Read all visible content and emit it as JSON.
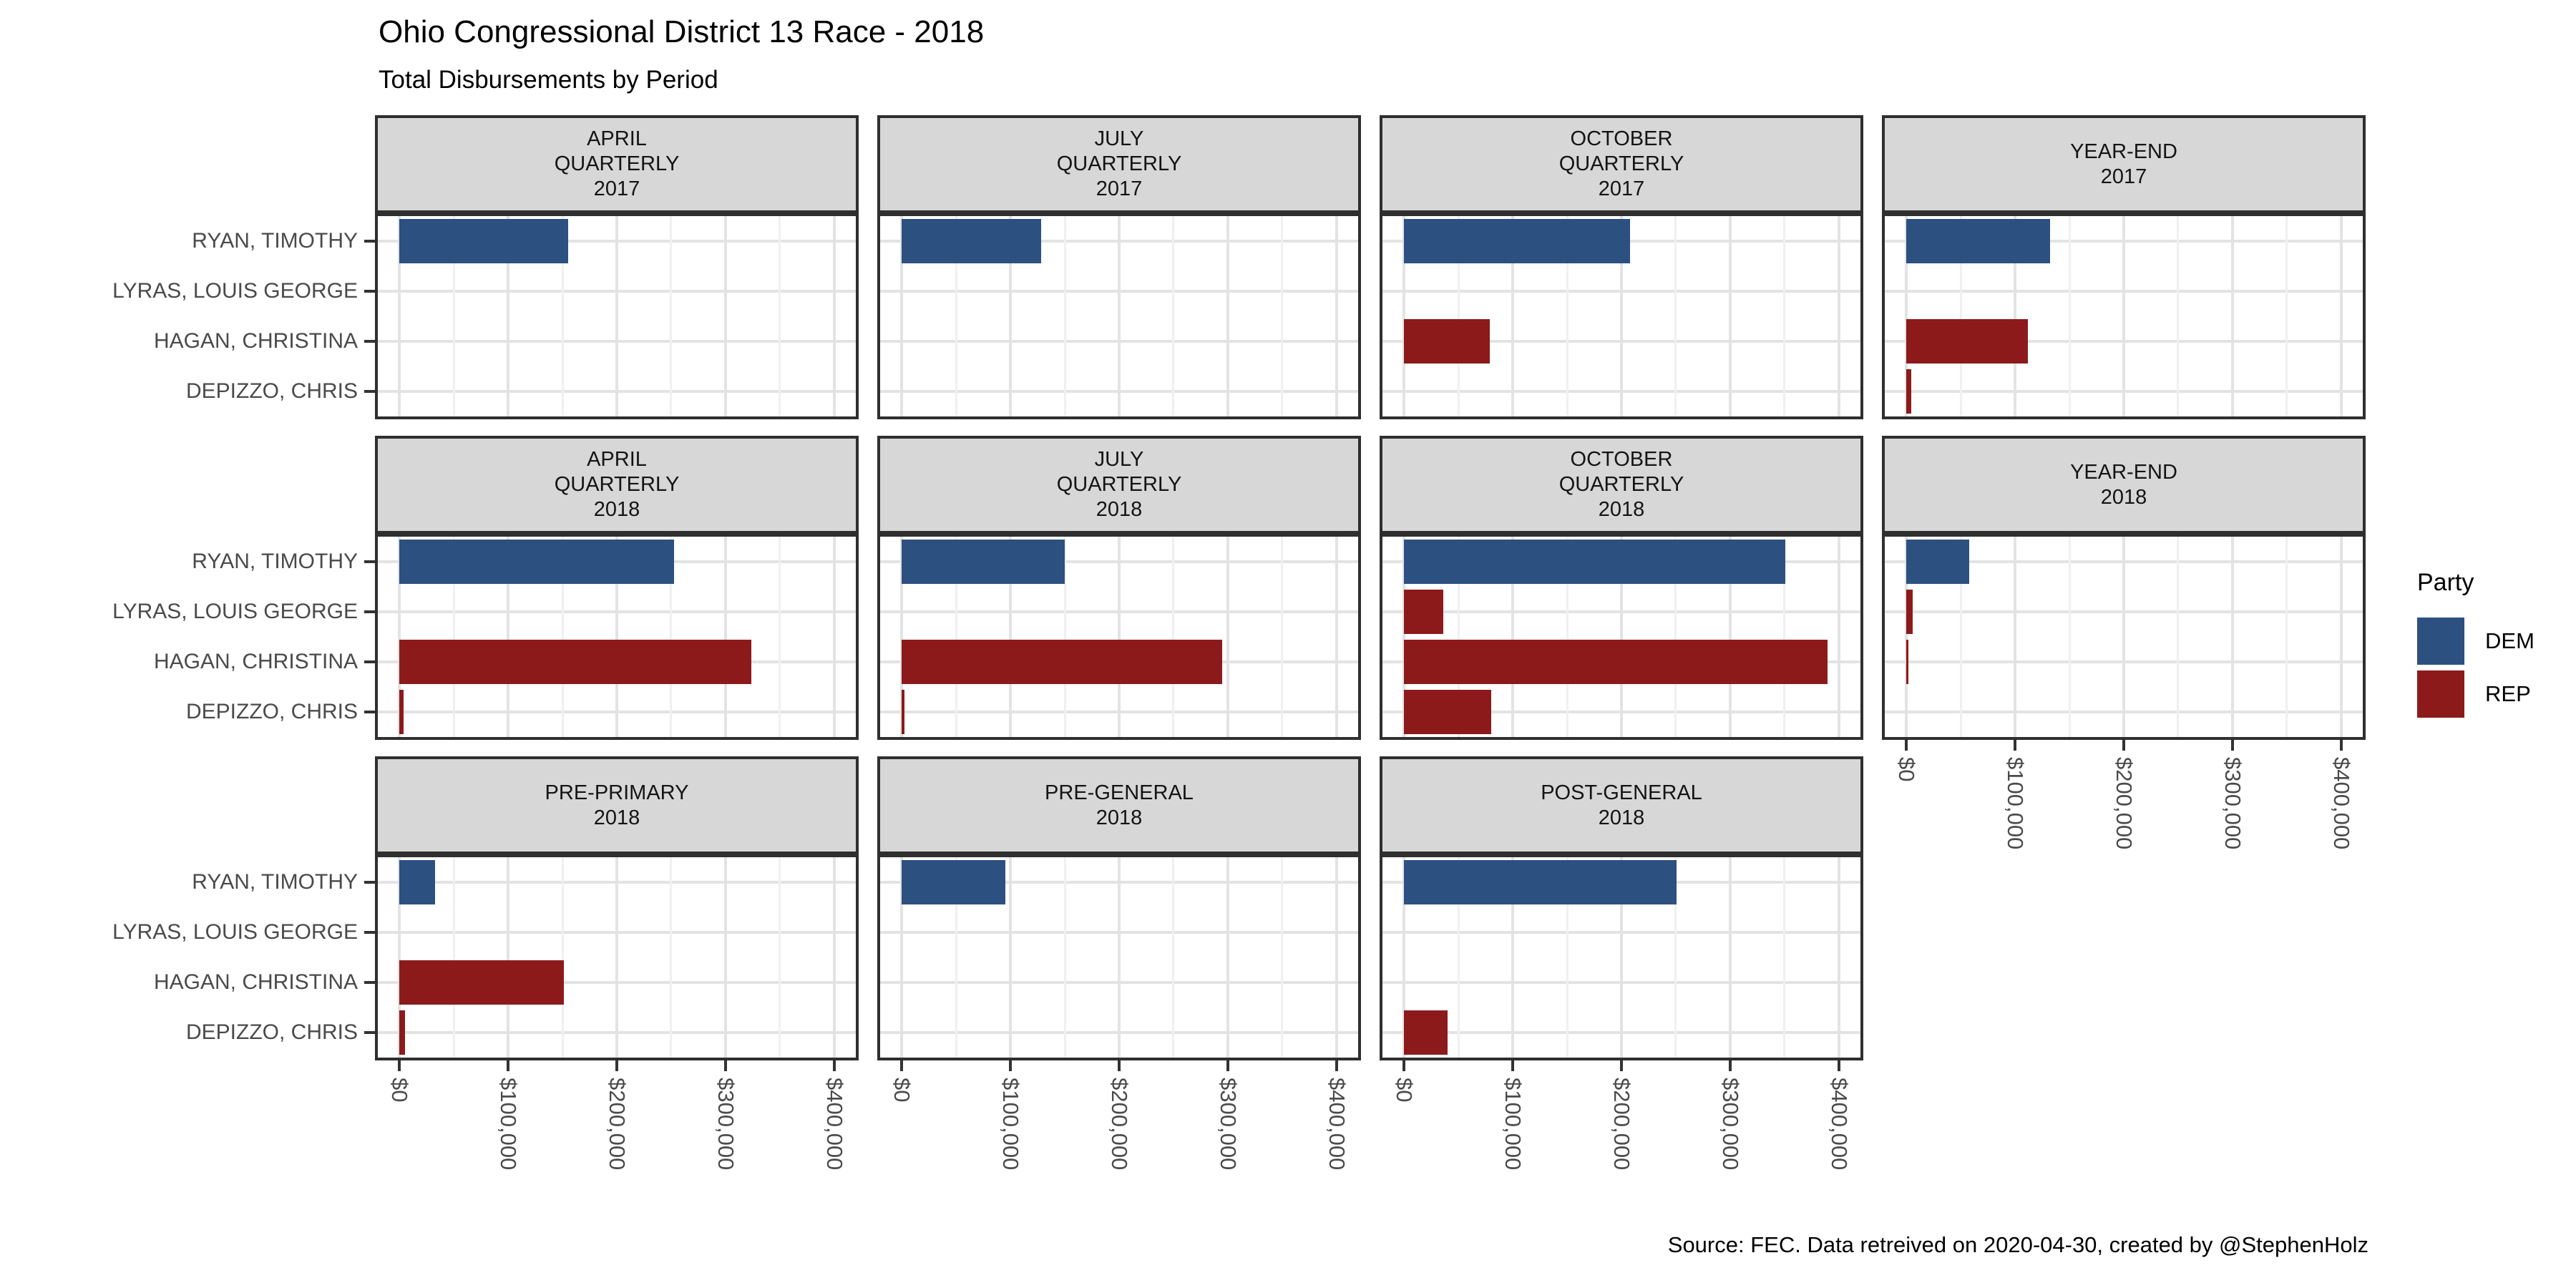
{
  "title": "Ohio Congressional District 13 Race - 2018",
  "subtitle": "Total Disbursements by Period",
  "caption": "Source: FEC. Data retreived on 2020-04-30, created by @StephenHolz",
  "legend": {
    "title": "Party",
    "entries": [
      {
        "label": "DEM",
        "color": "#2C5080"
      },
      {
        "label": "REP",
        "color": "#8D1A1A"
      }
    ]
  },
  "chart_data": {
    "type": "bar",
    "orientation": "horizontal",
    "title": "Ohio Congressional District 13 Race - 2018",
    "subtitle": "Total Disbursements by Period",
    "categories": [
      "RYAN, TIMOTHY",
      "LYRAS, LOUIS GEORGE",
      "HAGAN, CHRISTINA",
      "DEPIZZO, CHRIS"
    ],
    "category_party": [
      "DEM",
      "REP",
      "REP",
      "REP"
    ],
    "party_colors": {
      "DEM": "#2C5080",
      "REP": "#8D1A1A"
    },
    "x_tick_labels": [
      "$0",
      "$100,000",
      "$200,000",
      "$300,000",
      "$400,000"
    ],
    "x_tick_values": [
      0,
      100000,
      200000,
      300000,
      400000
    ],
    "x_minor_values": [
      50000,
      150000,
      250000,
      350000
    ],
    "xlim": [
      -20000,
      420000
    ],
    "grid": "on",
    "legend_position": "right",
    "facets": [
      {
        "label_lines": [
          "APRIL",
          "QUARTERLY",
          "2017"
        ],
        "row": 0,
        "col": 0,
        "axis": false,
        "values": [
          155000,
          0,
          0,
          0
        ]
      },
      {
        "label_lines": [
          "JULY",
          "QUARTERLY",
          "2017"
        ],
        "row": 0,
        "col": 1,
        "axis": false,
        "values": [
          128000,
          0,
          0,
          0
        ]
      },
      {
        "label_lines": [
          "OCTOBER",
          "QUARTERLY",
          "2017"
        ],
        "row": 0,
        "col": 2,
        "axis": false,
        "values": [
          208000,
          0,
          79000,
          0
        ]
      },
      {
        "label_lines": [
          "YEAR-END",
          "2017"
        ],
        "row": 0,
        "col": 3,
        "axis": false,
        "values": [
          132000,
          0,
          112000,
          4500
        ]
      },
      {
        "label_lines": [
          "APRIL",
          "QUARTERLY",
          "2018"
        ],
        "row": 1,
        "col": 0,
        "axis": false,
        "values": [
          253000,
          0,
          324000,
          4000
        ]
      },
      {
        "label_lines": [
          "JULY",
          "QUARTERLY",
          "2018"
        ],
        "row": 1,
        "col": 1,
        "axis": false,
        "values": [
          150000,
          0,
          295000,
          2500
        ]
      },
      {
        "label_lines": [
          "OCTOBER",
          "QUARTERLY",
          "2018"
        ],
        "row": 1,
        "col": 2,
        "axis": false,
        "values": [
          351000,
          36000,
          390000,
          80000
        ]
      },
      {
        "label_lines": [
          "YEAR-END",
          "2018"
        ],
        "row": 1,
        "col": 3,
        "axis": true,
        "values": [
          58000,
          5500,
          1500,
          0
        ]
      },
      {
        "label_lines": [
          "PRE-PRIMARY",
          "2018"
        ],
        "row": 2,
        "col": 0,
        "axis": true,
        "values": [
          33000,
          0,
          151000,
          5000
        ]
      },
      {
        "label_lines": [
          "PRE-GENERAL",
          "2018"
        ],
        "row": 2,
        "col": 1,
        "axis": true,
        "values": [
          95000,
          0,
          0,
          0
        ]
      },
      {
        "label_lines": [
          "POST-GENERAL",
          "2018"
        ],
        "row": 2,
        "col": 2,
        "axis": true,
        "values": [
          251000,
          0,
          0,
          40000
        ]
      }
    ]
  }
}
